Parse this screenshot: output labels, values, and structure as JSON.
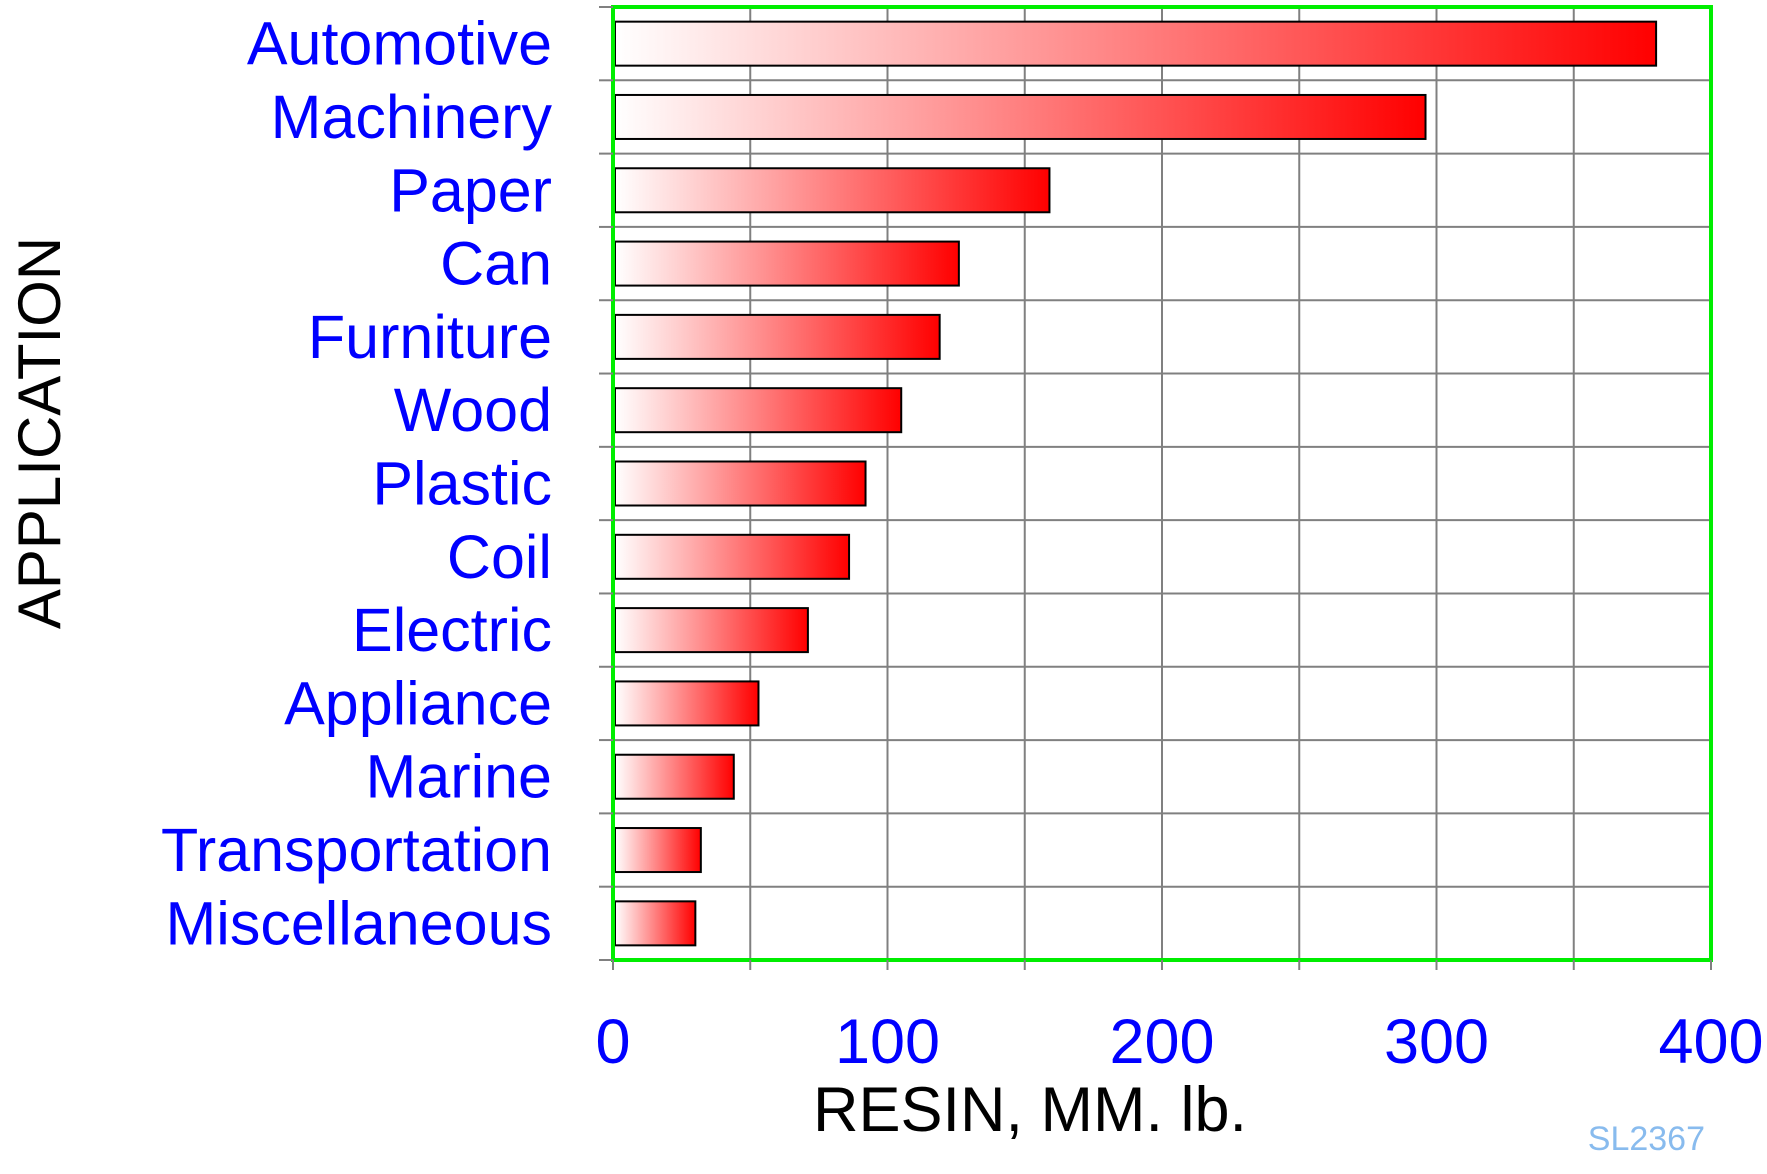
{
  "chart_data": {
    "type": "bar",
    "orientation": "horizontal",
    "title": "",
    "xlabel": "RESIN, MM. lb.",
    "ylabel": "APPLICATION",
    "categories": [
      "Automotive",
      "Machinery",
      "Paper",
      "Can",
      "Furniture",
      "Wood",
      "Plastic",
      "Coil",
      "Electric",
      "Appliance",
      "Marine",
      "Transportation",
      "Miscellaneous"
    ],
    "values": [
      380,
      296,
      159,
      126,
      119,
      105,
      92,
      86,
      71,
      53,
      44,
      32,
      30
    ],
    "xlim": [
      0,
      400
    ],
    "xticks": [
      0,
      100,
      200,
      300,
      400
    ],
    "grid": true,
    "legend": "none",
    "code": "SL2367"
  },
  "colors": {
    "bar_gradient_start": "#ffffff",
    "bar_gradient_end": "#ff0000",
    "frame": "#00ee00",
    "grid": "#808080",
    "category_text": "#0000ff",
    "tick_text": "#0000ff",
    "axis_title_text": "#000000",
    "code_text": "#88bbee"
  }
}
